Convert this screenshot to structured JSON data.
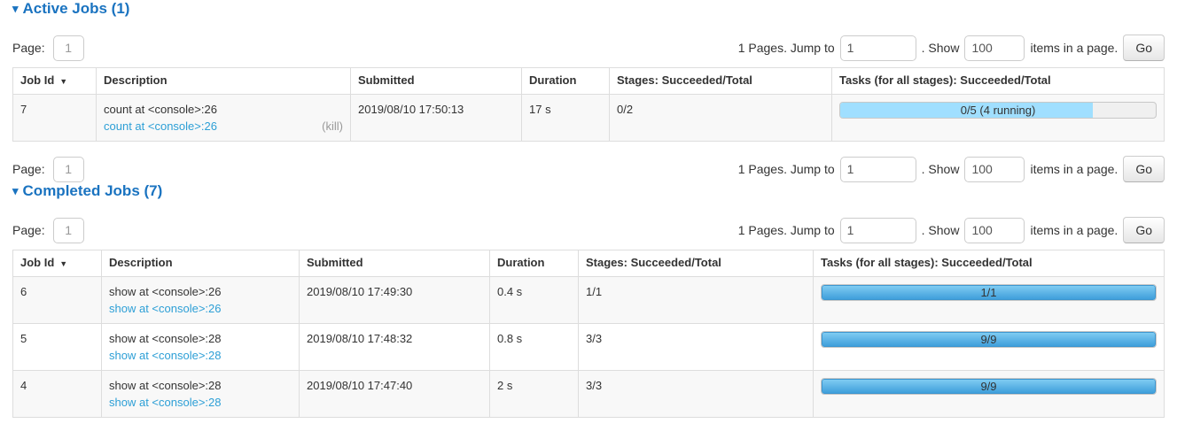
{
  "colors": {
    "heading_blue": "#1a73c0",
    "link_blue": "#2d9fd6",
    "bar_completed_gradient_top": "#7fcbf2",
    "bar_completed_gradient_bottom": "#3f9fdb",
    "bar_running_light_blue": "#a0dfff",
    "table_border": "#dddddd",
    "row_stripe": "#f8f8f8"
  },
  "sections": {
    "active": {
      "collapse_icon": "▾",
      "title": "Active Jobs (1)"
    },
    "completed": {
      "collapse_icon": "▾",
      "title": "Completed Jobs (7)"
    }
  },
  "pagination": {
    "page_label": "Page:",
    "page_value": "1",
    "pages_info": "1 Pages. Jump to",
    "jump_value": "1",
    "show_label": ". Show",
    "show_value": "100",
    "items_label": "items in a page.",
    "go_label": "Go"
  },
  "table_headers": {
    "job_id": "Job Id",
    "sort_arrow": "▼",
    "description": "Description",
    "submitted": "Submitted",
    "duration": "Duration",
    "stages": "Stages: Succeeded/Total",
    "tasks": "Tasks (for all stages): Succeeded/Total"
  },
  "jobs": {
    "active": [
      {
        "id": "7",
        "description": "count at <console>:26",
        "detail_link": "count at <console>:26",
        "kill_label": "(kill)",
        "submitted": "2019/08/10 17:50:13",
        "duration": "17 s",
        "stages": "0/2",
        "tasks_bar": {
          "label": "0/5 (4 running)",
          "completed_pct": 0,
          "running_pct": 80
        }
      }
    ],
    "completed": [
      {
        "id": "6",
        "description": "show at <console>:26",
        "detail_link": "show at <console>:26",
        "submitted": "2019/08/10 17:49:30",
        "duration": "0.4 s",
        "stages": "1/1",
        "tasks_bar": {
          "label": "1/1",
          "completed_pct": 100,
          "running_pct": 0
        }
      },
      {
        "id": "5",
        "description": "show at <console>:28",
        "detail_link": "show at <console>:28",
        "submitted": "2019/08/10 17:48:32",
        "duration": "0.8 s",
        "stages": "3/3",
        "tasks_bar": {
          "label": "9/9",
          "completed_pct": 100,
          "running_pct": 0
        }
      },
      {
        "id": "4",
        "description": "show at <console>:28",
        "detail_link": "show at <console>:28",
        "submitted": "2019/08/10 17:47:40",
        "duration": "2 s",
        "stages": "3/3",
        "tasks_bar": {
          "label": "9/9",
          "completed_pct": 100,
          "running_pct": 0
        }
      }
    ]
  }
}
